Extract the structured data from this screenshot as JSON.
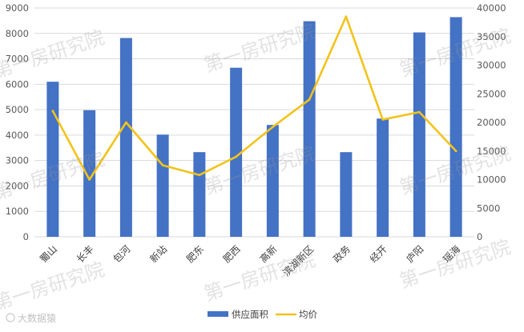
{
  "chart_data": {
    "type": "bar",
    "categories": [
      "蜀山",
      "长丰",
      "包河",
      "新站",
      "肥东",
      "肥西",
      "高新",
      "滨湖新区",
      "政务",
      "经开",
      "庐阳",
      "瑶海"
    ],
    "series": [
      {
        "name": "供应面积",
        "chart": "bar",
        "axis": "left",
        "color": "#4472C4",
        "values": [
          6100,
          4980,
          7820,
          4020,
          3330,
          6650,
          4400,
          8480,
          3330,
          4650,
          8040,
          8640
        ]
      },
      {
        "name": "均价",
        "chart": "line",
        "axis": "right",
        "color": "#F2C31A",
        "values": [
          22000,
          10000,
          20000,
          12500,
          10800,
          14000,
          19200,
          24000,
          38500,
          20500,
          21800,
          15000
        ]
      }
    ],
    "y_left": {
      "range": [
        0,
        9000
      ],
      "ticks": [
        "0",
        "1000",
        "2000",
        "3000",
        "4000",
        "5000",
        "6000",
        "7000",
        "8000",
        "9000"
      ]
    },
    "y_right": {
      "range": [
        0,
        40000
      ],
      "ticks": [
        "0",
        "5000",
        "10000",
        "15000",
        "20000",
        "25000",
        "30000",
        "35000",
        "40000"
      ]
    },
    "grid": true,
    "legend_position": "bottom"
  },
  "watermarks": [
    "第一房研究院",
    "第一房研究院",
    "第一房研究院",
    "第一房研究院",
    "第一房研究院",
    "第一房研究院",
    "第一房研究院",
    "第一房研究院",
    "第一房研究院"
  ],
  "credit": "大数据猿"
}
